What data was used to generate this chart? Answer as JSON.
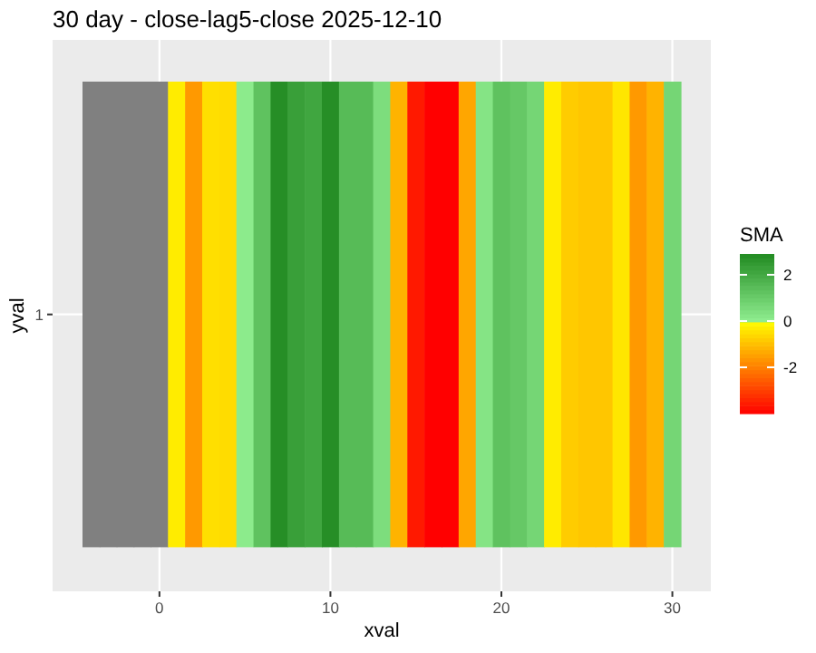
{
  "chart_data": {
    "type": "heatmap",
    "title": "30 day - close-lag5-close  2025-12-10",
    "xlabel": "xval",
    "ylabel": "yval",
    "clabel": "SMA",
    "x": [
      -4,
      -3,
      -2,
      -1,
      0,
      1,
      2,
      3,
      4,
      5,
      6,
      7,
      8,
      9,
      10,
      11,
      12,
      13,
      14,
      15,
      16,
      17,
      18,
      19,
      20,
      21,
      22,
      23,
      24,
      25,
      26,
      27,
      28,
      29,
      30
    ],
    "y_categories": [
      "1"
    ],
    "cells": [
      [
        null,
        null,
        null,
        null,
        null,
        -0.3,
        -1.6,
        -0.5,
        -0.55,
        0.1,
        1.3,
        2.8,
        2.3,
        2.1,
        2.8,
        1.5,
        1.5,
        0.5,
        -1.2,
        -3.6,
        -4,
        -4,
        -1.4,
        0.3,
        1.3,
        1.1,
        0.7,
        -0.3,
        -0.8,
        -0.9,
        -0.9,
        -0.4,
        -1.6,
        -1.2,
        0.7
      ]
    ],
    "xlim": [
      -6.25,
      32.25
    ],
    "xticks": [
      0,
      10,
      20,
      30
    ],
    "clim": [
      -4,
      2.9
    ],
    "cticks": [
      -2,
      0,
      2
    ],
    "grid": true
  }
}
